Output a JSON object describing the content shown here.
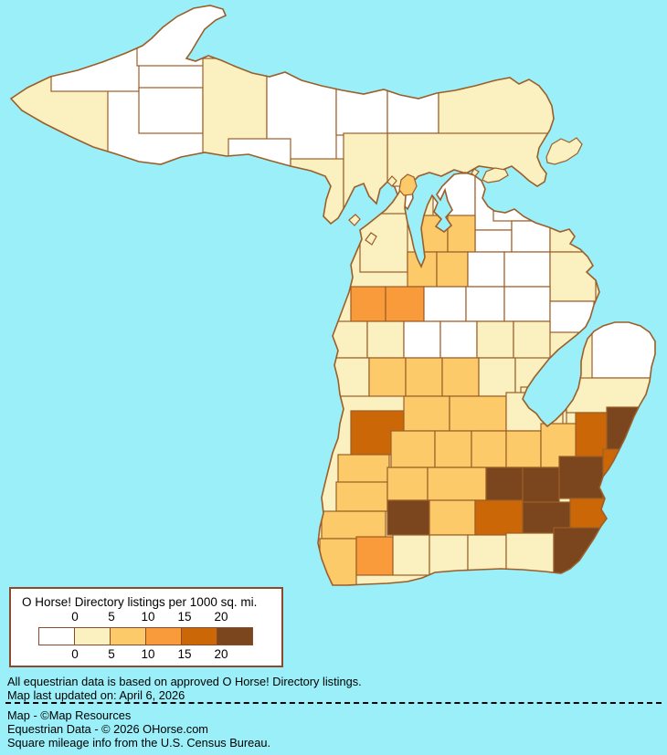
{
  "map": {
    "water_color": "#9AEFF8",
    "county_border_color": "#9C5E28",
    "level_colors": [
      "#FFFFFF",
      "#FAF0C0",
      "#FCCA68",
      "#F99B3B",
      "#CC6708",
      "#7B451D"
    ]
  },
  "legend": {
    "title": "O Horse! Directory listings per 1000 sq. mi.",
    "ticks_top": [
      "0",
      "5",
      "10",
      "15",
      "20"
    ],
    "ticks_bottom": [
      "0",
      "5",
      "10",
      "15",
      "20"
    ],
    "swatch_colors": [
      "#FFFFFF",
      "#FAF0C0",
      "#FCCA68",
      "#F99B3B",
      "#CC6708",
      "#7B451D"
    ],
    "box_border_color": "#8B4A2B"
  },
  "footer": {
    "note1": "All equestrian data is based on approved O Horse! Directory listings.",
    "note2": "Map last updated on: April 6, 2026",
    "credit1": "Map - ©Map Resources",
    "credit2": "Equestrian Data - © 2026 OHorse.com",
    "credit3": "Square mileage info from the U.S. Census Bureau."
  }
}
